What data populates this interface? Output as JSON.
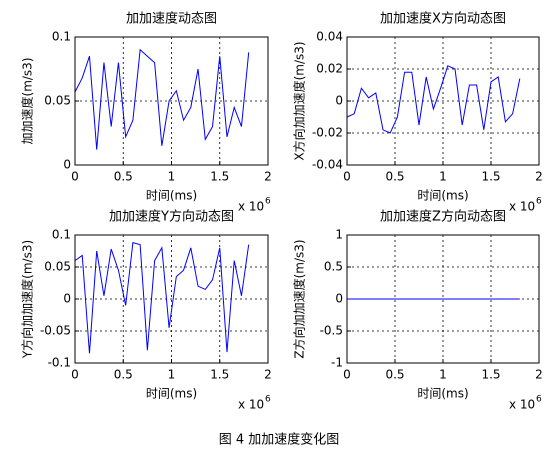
{
  "chart_data": [
    {
      "type": "line",
      "title": "加加速度动态图",
      "xlabel": "时间(ms)",
      "ylabel": "加加速度(m/s3)",
      "x_scale_label": "x 10",
      "x_scale_exponent": "6",
      "color": "#0000ff",
      "grid": true,
      "x": [
        0,
        0.075,
        0.15,
        0.225,
        0.3,
        0.375,
        0.45,
        0.525,
        0.6,
        0.675,
        0.75,
        0.825,
        0.9,
        0.975,
        1.05,
        1.125,
        1.2,
        1.275,
        1.35,
        1.425,
        1.5,
        1.575,
        1.65,
        1.725,
        1.8
      ],
      "values": [
        0.057,
        0.068,
        0.085,
        0.012,
        0.08,
        0.03,
        0.08,
        0.022,
        0.035,
        0.09,
        0.085,
        0.08,
        0.015,
        0.05,
        0.058,
        0.035,
        0.045,
        0.075,
        0.02,
        0.03,
        0.085,
        0.022,
        0.045,
        0.03,
        0.088
      ],
      "xlim": [
        0,
        2
      ],
      "xticks": [
        0,
        0.5,
        1,
        1.5,
        2
      ],
      "ylim": [
        0,
        0.1
      ],
      "yticks": [
        0,
        0.05,
        0.1
      ]
    },
    {
      "type": "line",
      "title": "加加速度X方向动态图",
      "xlabel": "时间(ms)",
      "ylabel": "X方向加加速度(m/s3)",
      "x_scale_label": "x 10",
      "x_scale_exponent": "6",
      "color": "#0000ff",
      "grid": true,
      "x": [
        0,
        0.075,
        0.15,
        0.225,
        0.3,
        0.375,
        0.45,
        0.525,
        0.6,
        0.675,
        0.75,
        0.825,
        0.9,
        0.975,
        1.05,
        1.125,
        1.2,
        1.275,
        1.35,
        1.425,
        1.5,
        1.575,
        1.65,
        1.725,
        1.8
      ],
      "values": [
        -0.01,
        -0.008,
        0.008,
        0.002,
        0.005,
        -0.018,
        -0.02,
        -0.01,
        0.018,
        0.018,
        -0.015,
        0.015,
        -0.005,
        0.008,
        0.022,
        0.02,
        -0.015,
        0.01,
        0.01,
        -0.018,
        0.012,
        0.015,
        -0.013,
        -0.008,
        0.014
      ],
      "xlim": [
        0,
        2
      ],
      "xticks": [
        0,
        0.5,
        1,
        1.5,
        2
      ],
      "ylim": [
        -0.04,
        0.04
      ],
      "yticks": [
        -0.04,
        -0.02,
        0,
        0.02,
        0.04
      ]
    },
    {
      "type": "line",
      "title": "加加速度Y方向动态图",
      "xlabel": "时间(ms)",
      "ylabel": "Y方向加加速度(m/s3)",
      "x_scale_label": "x 10",
      "x_scale_exponent": "6",
      "color": "#0000ff",
      "grid": true,
      "x": [
        0,
        0.075,
        0.15,
        0.225,
        0.3,
        0.375,
        0.45,
        0.525,
        0.6,
        0.675,
        0.75,
        0.825,
        0.9,
        0.975,
        1.05,
        1.125,
        1.2,
        1.275,
        1.35,
        1.425,
        1.5,
        1.575,
        1.65,
        1.725,
        1.8
      ],
      "values": [
        0.06,
        0.068,
        -0.085,
        0.075,
        0.005,
        0.078,
        0.045,
        -0.01,
        0.088,
        0.085,
        -0.08,
        0.06,
        0.08,
        -0.045,
        0.035,
        0.045,
        0.08,
        0.02,
        0.015,
        0.03,
        0.08,
        -0.083,
        0.06,
        0.005,
        0.085
      ],
      "xlim": [
        0,
        2
      ],
      "xticks": [
        0,
        0.5,
        1,
        1.5,
        2
      ],
      "ylim": [
        -0.1,
        0.1
      ],
      "yticks": [
        -0.1,
        -0.05,
        0,
        0.05,
        0.1
      ]
    },
    {
      "type": "line",
      "title": "加加速度Z方向动态图",
      "xlabel": "时间(ms)",
      "ylabel": "Z方向加加速度(m/s3)",
      "x_scale_label": "x 10",
      "x_scale_exponent": "6",
      "color": "#0000ff",
      "grid": true,
      "x": [
        0,
        0.075,
        0.15,
        0.225,
        0.3,
        0.375,
        0.45,
        0.525,
        0.6,
        0.675,
        0.75,
        0.825,
        0.9,
        0.975,
        1.05,
        1.125,
        1.2,
        1.275,
        1.35,
        1.425,
        1.5,
        1.575,
        1.65,
        1.725,
        1.8
      ],
      "values": [
        0,
        0,
        0,
        0,
        0,
        0,
        0,
        0,
        0,
        0,
        0,
        0,
        0,
        0,
        0,
        0,
        0,
        0,
        0,
        0,
        0,
        0,
        0,
        0,
        0
      ],
      "xlim": [
        0,
        2
      ],
      "xticks": [
        0,
        0.5,
        1,
        1.5,
        2
      ],
      "ylim": [
        -1,
        1
      ],
      "yticks": [
        -1,
        -0.5,
        0,
        0.5,
        1
      ]
    }
  ],
  "caption": "图 4  加加速度变化图"
}
